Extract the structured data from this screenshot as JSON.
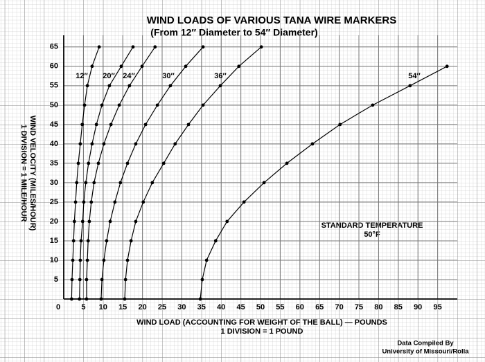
{
  "chart_data": {
    "type": "line",
    "title": "WIND LOADS OF VARIOUS TANA WIRE MARKERS",
    "subtitle": "(From 12″ Diameter to 54″ Diameter)",
    "x_label": "WIND LOAD (ACCOUNTING FOR WEIGHT OF THE BALL) — POUNDS",
    "x_label_sub": "1 DIVISION = 1 POUND",
    "y_label": "WIND VELOCITY (MILES/HOUR)",
    "y_label_sub": "1 DIVISION = 1 MILE/HOUR",
    "annotations": [
      "STANDARD TEMPERATURE",
      "50°F"
    ],
    "source": [
      "Data Compiled By",
      "University of Missouri/Rolla"
    ],
    "orientation": "horizontal",
    "y": [
      0,
      5,
      10,
      15,
      20,
      25,
      30,
      35,
      40,
      45,
      50,
      55,
      60,
      65
    ],
    "series": [
      {
        "name": "12″",
        "color": "#000000",
        "values": [
          2.0,
          2.1,
          2.3,
          2.5,
          2.7,
          3.0,
          3.3,
          3.7,
          4.2,
          4.7,
          5.3,
          6.0,
          7.2,
          9.0
        ]
      },
      {
        "name": "20″",
        "color": "#000000",
        "values": [
          4.0,
          4.1,
          4.2,
          4.4,
          4.8,
          5.1,
          5.6,
          6.3,
          7.2,
          8.3,
          9.7,
          11.6,
          14.6,
          17.6
        ]
      },
      {
        "name": "24″",
        "color": "#000000",
        "values": [
          5.8,
          5.8,
          6.0,
          6.2,
          6.5,
          7.0,
          7.7,
          8.8,
          10.2,
          12.0,
          14.1,
          16.7,
          19.9,
          23.2
        ]
      },
      {
        "name": "30″",
        "color": "#000000",
        "values": [
          9.5,
          9.7,
          10.2,
          10.9,
          11.8,
          13.0,
          14.4,
          16.2,
          18.3,
          20.8,
          23.8,
          27.1,
          31.0,
          35.4
        ]
      },
      {
        "name": "36″",
        "color": "#000000",
        "values": [
          15.5,
          15.7,
          16.2,
          17.1,
          18.3,
          20.2,
          22.5,
          25.4,
          28.3,
          31.7,
          35.4,
          39.8,
          44.5,
          50.2
        ]
      },
      {
        "name": "54″",
        "color": "#000000",
        "values": [
          34.7,
          35.2,
          36.3,
          38.6,
          41.5,
          45.8,
          50.9,
          56.7,
          63.2,
          70.2,
          78.5,
          88.0,
          97.4,
          null
        ]
      }
    ],
    "xlim": [
      0,
      100
    ],
    "ylim": [
      0,
      68
    ],
    "xticks": [
      0,
      5,
      10,
      15,
      20,
      25,
      30,
      35,
      40,
      45,
      50,
      55,
      60,
      65,
      70,
      75,
      80,
      85,
      90,
      95
    ],
    "yticks": [
      0,
      5,
      10,
      15,
      20,
      25,
      30,
      35,
      40,
      45,
      50,
      55,
      60,
      65
    ],
    "grid": true
  }
}
